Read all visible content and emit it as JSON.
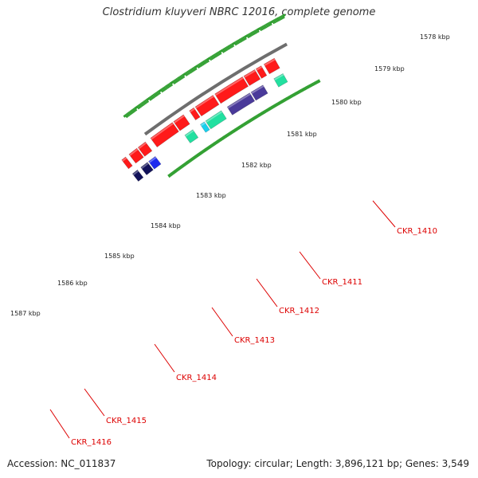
{
  "title": "Clostridium kluyveri NBRC 12016, complete genome",
  "accession": "Accession: NC_011837",
  "genome_info": "Topology: circular; Length: 3,896,121 bp; Genes: 3,549",
  "colors": {
    "backbone": "#6e6e6e",
    "tick": "#2e9e2e",
    "forward_cds": "#ff1a1a",
    "reverse_cds": "#4a3a9a",
    "reverse_cds_alt": "#1e2aee",
    "reverse_cds_dark": "#12125a",
    "rna_feature": "#22e0a0",
    "cyan_feature": "#18d0ee",
    "label": "#dd0000"
  },
  "ruler_labels": [
    "1578 kbp",
    "1579 kbp",
    "1580 kbp",
    "1581 kbp",
    "1582 kbp",
    "1583 kbp",
    "1584 kbp",
    "1585 kbp",
    "1586 kbp",
    "1587 kbp"
  ],
  "gene_labels": [
    "CKR_1410",
    "CKR_1411",
    "CKR_1412",
    "CKR_1413",
    "CKR_1414",
    "CKR_1415",
    "CKR_1416"
  ]
}
